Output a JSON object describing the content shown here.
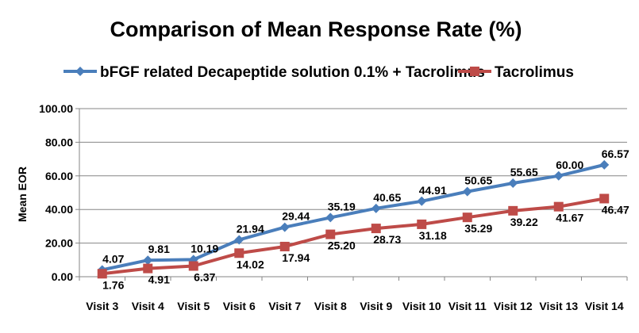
{
  "chart_data": {
    "type": "line",
    "title": "Comparison of Mean Response Rate (%)",
    "xlabel": "",
    "ylabel": "Mean EOR",
    "ylim": [
      0,
      100
    ],
    "yticks": [
      "0.00",
      "20.00",
      "40.00",
      "60.00",
      "80.00",
      "100.00"
    ],
    "ytick_values": [
      0,
      20,
      40,
      60,
      80,
      100
    ],
    "grid": true,
    "legend_position": "top",
    "categories": [
      "Visit 3",
      "Visit 4",
      "Visit 5",
      "Visit 6",
      "Visit 7",
      "Visit 8",
      "Visit 9",
      "Visit 10",
      "Visit 11",
      "Visit 12",
      "Visit 13",
      "Visit 14"
    ],
    "series": [
      {
        "name": "bFGF related Decapeptide solution  0.1% + Tacrolimus",
        "color": "#4a7ebb",
        "marker": "diamond",
        "values": [
          4.07,
          9.81,
          10.19,
          21.94,
          29.44,
          35.19,
          40.65,
          44.91,
          50.65,
          55.65,
          60.0,
          66.57
        ],
        "labels": [
          "4.07",
          "9.81",
          "10.19",
          "21.94",
          "29.44",
          "35.19",
          "40.65",
          "44.91",
          "50.65",
          "55.65",
          "60.00",
          "66.57"
        ]
      },
      {
        "name": "Tacrolimus",
        "color": "#be4b48",
        "marker": "square",
        "values": [
          1.76,
          4.91,
          6.37,
          14.02,
          17.94,
          25.2,
          28.73,
          31.18,
          35.29,
          39.22,
          41.67,
          46.47
        ],
        "labels": [
          "1.76",
          "4.91",
          "6.37",
          "14.02",
          "17.94",
          "25.20",
          "28.73",
          "31.18",
          "35.29",
          "39.22",
          "41.67",
          "46.47"
        ]
      }
    ]
  }
}
